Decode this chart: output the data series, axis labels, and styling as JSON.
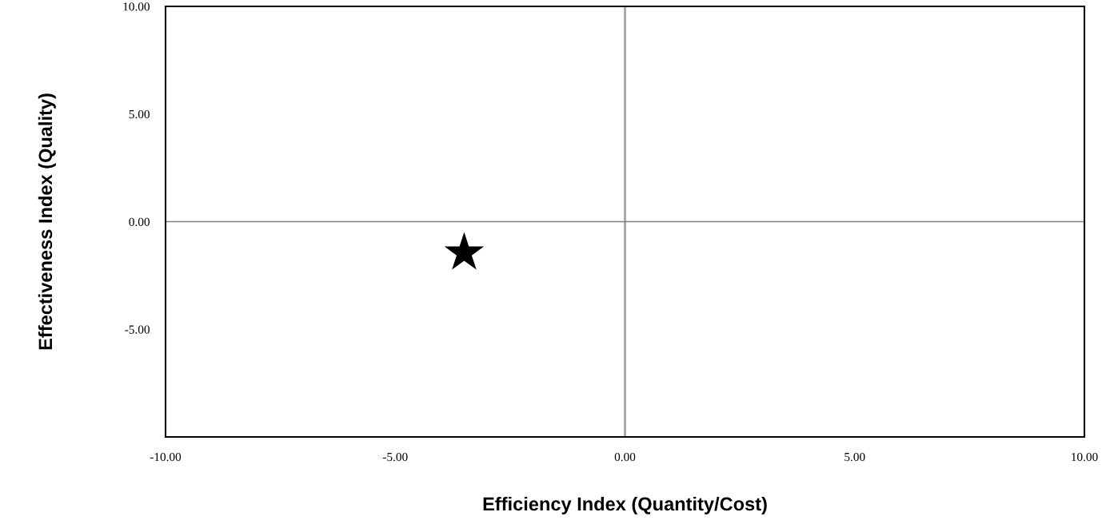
{
  "chart_data": {
    "type": "scatter",
    "xlabel": "Efficiency Index (Quantity/Cost)",
    "ylabel": "Effectiveness Index (Quality)",
    "x": [
      -3.5
    ],
    "values": [
      -1.45
    ],
    "color": "#000000",
    "marker": "star",
    "xlim": [
      -10,
      10
    ],
    "ylim": [
      -10,
      10
    ],
    "xticks": [
      {
        "value": -10,
        "label": "-10.00"
      },
      {
        "value": -5,
        "label": "-5.00"
      },
      {
        "value": 0,
        "label": "0.00"
      },
      {
        "value": 5,
        "label": "5.00"
      },
      {
        "value": 10,
        "label": "10.00"
      }
    ],
    "yticks": [
      {
        "value": -10,
        "label": null
      },
      {
        "value": -5,
        "label": "-5.00"
      },
      {
        "value": 0,
        "label": "0.00"
      },
      {
        "value": 5,
        "label": "5.00"
      },
      {
        "value": 10,
        "label": "10.00"
      }
    ],
    "ref_lines": [
      {
        "axis": "x",
        "value": 0,
        "color": "#a6a6a6"
      },
      {
        "axis": "y",
        "value": 0,
        "color": "#7f7f7f"
      }
    ],
    "grid": false,
    "legend": false
  }
}
